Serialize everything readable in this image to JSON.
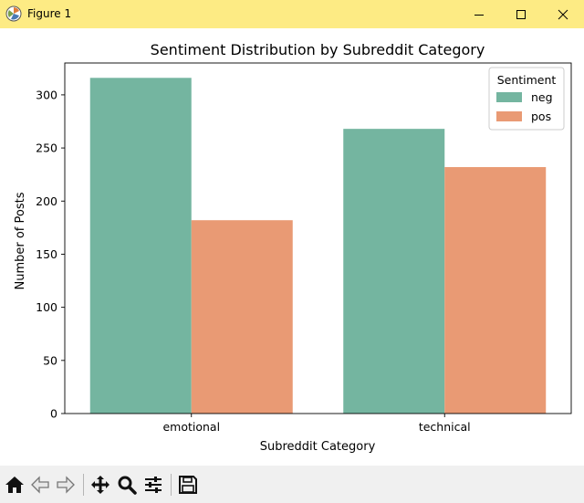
{
  "window": {
    "title": "Figure 1",
    "titlebar_color": "#fdeb84"
  },
  "toolbar": {
    "buttons": [
      "home-icon",
      "back-arrow-icon",
      "forward-arrow-icon",
      "pan-move-icon",
      "zoom-magnifier-icon",
      "configure-sliders-icon",
      "save-floppy-icon"
    ]
  },
  "chart_data": {
    "type": "bar",
    "title": "Sentiment Distribution by Subreddit Category",
    "xlabel": "Subreddit Category",
    "ylabel": "Number of Posts",
    "categories": [
      "emotional",
      "technical"
    ],
    "series": [
      {
        "name": "neg",
        "color": "#74b5a0",
        "values": [
          316,
          268
        ]
      },
      {
        "name": "pos",
        "color": "#e99a74",
        "values": [
          182,
          232
        ]
      }
    ],
    "ylim": [
      0,
      330
    ],
    "yticks": [
      0,
      50,
      100,
      150,
      200,
      250,
      300
    ],
    "legend": {
      "title": "Sentiment",
      "position": "top-right"
    },
    "grid": false
  }
}
